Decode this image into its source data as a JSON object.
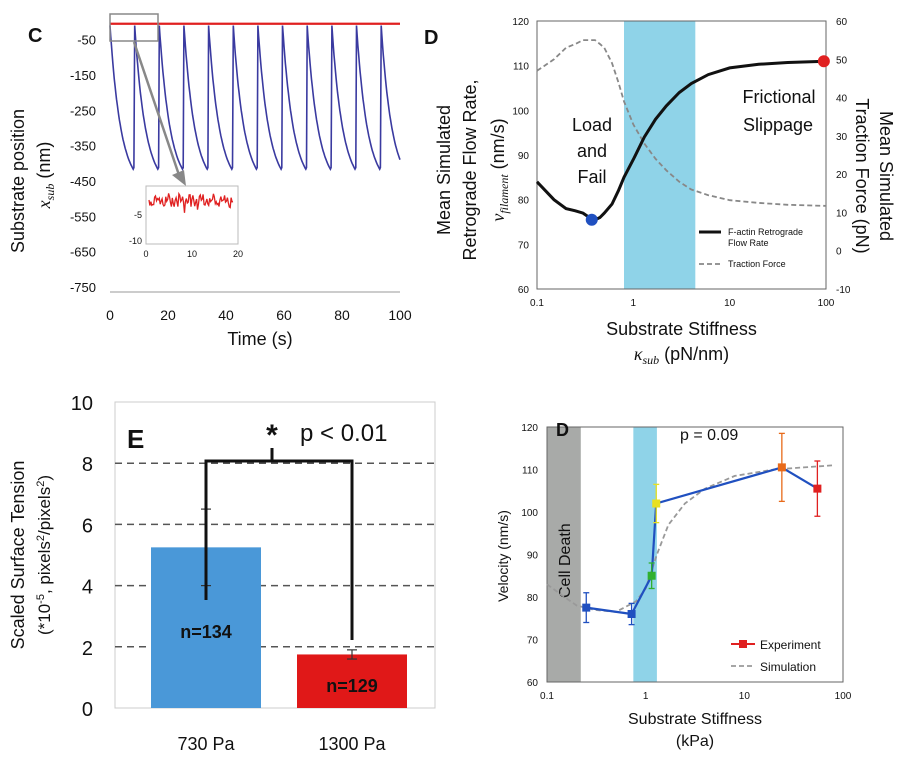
{
  "colors": {
    "blue": "#3a3aa0",
    "red": "#e02020",
    "cyan": "#8fd3e8",
    "gray_band": "#a8aaa8",
    "bar_blue": "#4a98d8",
    "bar_red": "#e01818",
    "orange": "#e86a1a",
    "yellow": "#e8e020",
    "green": "#30b030",
    "dark_blue": "#2050c0"
  },
  "chart_data": [
    {
      "panel": "C",
      "type": "line",
      "ylabel_top": "Substrate position",
      "ylabel_sym": "x",
      "ylabel_sub": "sub",
      "ylabel_unit": "(nm)",
      "xlabel": "Time (s)",
      "xlim": [
        0,
        100
      ],
      "ylim": [
        -750,
        0
      ],
      "xticks": [
        "0",
        "20",
        "40",
        "60",
        "80",
        "100"
      ],
      "yticks": [
        "-50",
        "-150",
        "-250",
        "-350",
        "-450",
        "-550",
        "-650",
        "-750"
      ],
      "series": [
        {
          "color": "blue",
          "cycle_period_s": 8.5,
          "min_nm": -420,
          "max_nm": -10
        },
        {
          "color": "red",
          "value_nm": -5
        }
      ],
      "inset": {
        "xticks": [
          "0",
          "10",
          "20"
        ],
        "yticks": [
          "-5",
          "-10"
        ],
        "xlim": [
          0,
          20
        ],
        "ylim": [
          -10,
          0
        ]
      }
    },
    {
      "panel": "D",
      "type": "line",
      "xlabel": "Substrate Stiffness",
      "xlabel_sym": "κ",
      "xlabel_sub": "sub",
      "xlabel_unit": "(pN/nm)",
      "ylabel_left": [
        "Mean Simulated",
        "Retrograde Flow Rate,"
      ],
      "ylabel_left_sym": "v",
      "ylabel_left_sub": "filament",
      "ylabel_left_unit": "(nm/s)",
      "ylabel_right": [
        "Mean Simulated",
        "Traction Force (pN)"
      ],
      "xticks": [
        "0.1",
        "1",
        "10",
        "100"
      ],
      "yticks_left": [
        "60",
        "70",
        "80",
        "90",
        "100",
        "110",
        "120"
      ],
      "yticks_right": [
        "-10",
        "0",
        "10",
        "20",
        "30",
        "40",
        "50",
        "60"
      ],
      "ylim_left": [
        60,
        120
      ],
      "ylim_right": [
        -10,
        60
      ],
      "xlim": [
        0.1,
        100
      ],
      "x_scale": "log",
      "shaded_region": [
        0.8,
        4.4
      ],
      "annotations": [
        "Load",
        "and",
        "Fail",
        "Frictional",
        "Slippage"
      ],
      "legend": [
        "F-actin Retrograde",
        "Flow Rate",
        "Traction Force"
      ],
      "series": [
        {
          "name": "F-actin Retrograde Flow Rate",
          "x": [
            0.1,
            0.15,
            0.2,
            0.25,
            0.3,
            0.35,
            0.4,
            0.45,
            0.5,
            0.6,
            0.7,
            0.8,
            1,
            1.3,
            1.7,
            2.2,
            3,
            4,
            6,
            10,
            20,
            40,
            100
          ],
          "y": [
            84,
            80,
            78,
            77.5,
            77,
            76,
            75.5,
            76,
            77,
            79,
            82,
            85,
            89,
            94,
            98,
            101,
            104,
            106,
            108,
            109.5,
            110.3,
            110.7,
            111
          ]
        },
        {
          "name": "Traction Force",
          "x": [
            0.1,
            0.15,
            0.2,
            0.25,
            0.3,
            0.35,
            0.4,
            0.45,
            0.5,
            0.6,
            0.7,
            0.8,
            1,
            1.3,
            1.7,
            2.2,
            3,
            4,
            6,
            10,
            20,
            40,
            100
          ],
          "y": [
            47,
            50,
            53,
            54,
            55,
            55,
            55,
            54,
            53,
            49,
            44,
            39,
            33,
            28,
            24,
            21,
            18,
            16,
            14.5,
            13.2,
            12.5,
            12,
            11.7
          ]
        }
      ],
      "markers": [
        {
          "x": 0.37,
          "y": 75.5,
          "color": "dark_blue"
        },
        {
          "x": 95,
          "y": 111,
          "color": "red"
        }
      ]
    },
    {
      "panel": "E",
      "type": "bar",
      "ylabel": [
        "Scaled Surface Tension",
        "(*10-5, pixels2/pixels2)"
      ],
      "categories": [
        "730 Pa",
        "1300 Pa"
      ],
      "values": [
        5.25,
        1.75
      ],
      "errors": [
        1.25,
        0.15
      ],
      "bar_labels": [
        "n=134",
        "n=129"
      ],
      "ylim": [
        0,
        10
      ],
      "yticks": [
        "0",
        "2",
        "4",
        "6",
        "8",
        "10"
      ],
      "significance": "p < 0.01"
    },
    {
      "panel": "D",
      "type": "line",
      "xlabel": [
        "Substrate Stiffness",
        "(kPa)"
      ],
      "ylabel": "Velocity (nm/s)",
      "xlim": [
        0.1,
        100
      ],
      "ylim": [
        60,
        120
      ],
      "x_scale": "log",
      "xticks": [
        "0.1",
        "1",
        "10",
        "100"
      ],
      "yticks": [
        "60",
        "70",
        "80",
        "90",
        "100",
        "110",
        "120"
      ],
      "shaded_region": [
        0.75,
        1.3
      ],
      "gray_region": [
        0.1,
        0.22
      ],
      "gray_label": "Cell Death",
      "pvalue": "p = 0.09",
      "legend": [
        "Experiment",
        "Simulation"
      ],
      "series": [
        {
          "name": "Experiment",
          "x": [
            0.25,
            0.72,
            1.15,
            1.28,
            24,
            55
          ],
          "y": [
            77.5,
            76,
            85,
            102,
            110.5,
            105.5
          ],
          "yerr": [
            3.5,
            2.5,
            3,
            4.5,
            8,
            6.5
          ],
          "colors": [
            "dark_blue",
            "dark_blue",
            "green",
            "yellow",
            "orange",
            "red"
          ]
        },
        {
          "name": "Simulation",
          "x": [
            0.1,
            0.15,
            0.2,
            0.3,
            0.5,
            0.8,
            1,
            1.3,
            1.7,
            2.5,
            4,
            8,
            20,
            40,
            80
          ],
          "y": [
            83,
            80,
            78,
            77,
            76.5,
            79,
            82,
            90,
            97,
            102,
            105.5,
            108.5,
            110,
            110.5,
            111
          ]
        }
      ]
    }
  ]
}
